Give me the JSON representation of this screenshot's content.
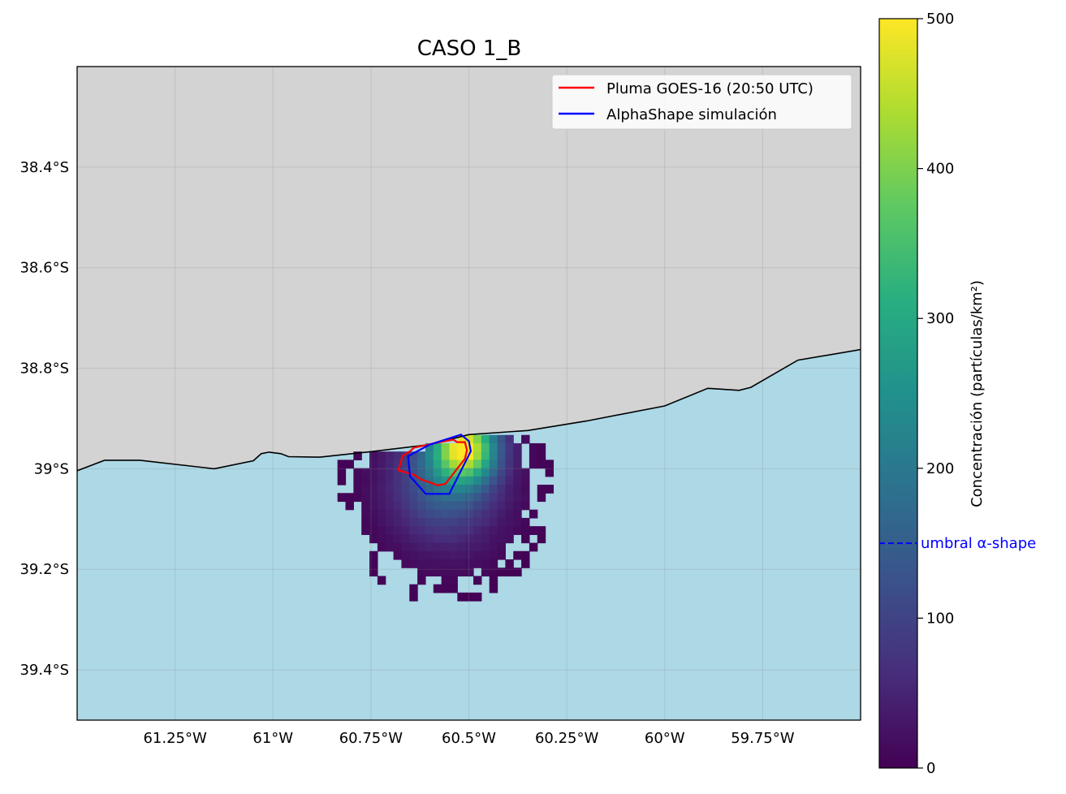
{
  "title": "CASO 1_B",
  "map": {
    "land_color": "#d3d3d3",
    "sea_color": "#add8e6",
    "lon_range": [
      -61.5,
      -59.5
    ],
    "lat_range": [
      -39.5,
      -38.2
    ],
    "x_ticks": [
      {
        "lon": -61.25,
        "label": "61.25°W"
      },
      {
        "lon": -61.0,
        "label": "61°W"
      },
      {
        "lon": -60.75,
        "label": "60.75°W"
      },
      {
        "lon": -60.5,
        "label": "60.5°W"
      },
      {
        "lon": -60.25,
        "label": "60.25°W"
      },
      {
        "lon": -60.0,
        "label": "60°W"
      },
      {
        "lon": -59.75,
        "label": "59.75°W"
      }
    ],
    "y_ticks": [
      {
        "lat": -38.4,
        "label": "38.4°S"
      },
      {
        "lat": -38.6,
        "label": "38.6°S"
      },
      {
        "lat": -38.8,
        "label": "38.8°S"
      },
      {
        "lat": -39.0,
        "label": "39°S"
      },
      {
        "lat": -39.2,
        "label": "39.2°S"
      },
      {
        "lat": -39.4,
        "label": "39.4°S"
      }
    ],
    "coastline": [
      [
        -61.5,
        -39.004
      ],
      [
        -61.43,
        -38.983
      ],
      [
        -61.34,
        -38.983
      ],
      [
        -61.15,
        -39.0
      ],
      [
        -61.05,
        -38.984
      ],
      [
        -61.03,
        -38.97
      ],
      [
        -61.01,
        -38.967
      ],
      [
        -60.98,
        -38.97
      ],
      [
        -60.96,
        -38.976
      ],
      [
        -60.88,
        -38.977
      ],
      [
        -60.75,
        -38.966
      ],
      [
        -60.6,
        -38.952
      ],
      [
        -60.5,
        -38.932
      ],
      [
        -60.35,
        -38.924
      ],
      [
        -60.2,
        -38.905
      ],
      [
        -60.0,
        -38.875
      ],
      [
        -59.89,
        -38.84
      ],
      [
        -59.81,
        -38.844
      ],
      [
        -59.78,
        -38.838
      ],
      [
        -59.66,
        -38.784
      ],
      [
        -59.5,
        -38.763
      ]
    ]
  },
  "concentration_field": {
    "center_lon": -60.56,
    "center_lat": -39.04,
    "cell_deg_lon": 0.0204,
    "cell_deg_lat": 0.0165,
    "peak_lon": -60.51,
    "peak_lat": -38.957,
    "peak_value": 420,
    "vmin": 0,
    "vmax": 500
  },
  "legend": {
    "position": "upper right",
    "entries": [
      {
        "label": "Pluma GOES-16 (20:50 UTC)",
        "color": "#ff0000"
      },
      {
        "label": "AlphaShape simulación",
        "color": "#0000ff"
      }
    ]
  },
  "plume_goes": [
    [
      -60.64,
      -38.958
    ],
    [
      -60.58,
      -38.948
    ],
    [
      -60.54,
      -38.942
    ],
    [
      -60.53,
      -38.947
    ],
    [
      -60.51,
      -38.947
    ],
    [
      -60.505,
      -38.963
    ],
    [
      -60.51,
      -38.98
    ],
    [
      -60.53,
      -39.0
    ],
    [
      -60.55,
      -39.02
    ],
    [
      -60.56,
      -39.03
    ],
    [
      -60.58,
      -39.033
    ],
    [
      -60.6,
      -39.027
    ],
    [
      -60.62,
      -39.022
    ],
    [
      -60.64,
      -39.012
    ],
    [
      -60.68,
      -39.003
    ],
    [
      -60.675,
      -38.99
    ],
    [
      -60.67,
      -38.975
    ],
    [
      -60.65,
      -38.965
    ]
  ],
  "alpha_shape": [
    [
      -60.655,
      -38.975
    ],
    [
      -60.6,
      -38.952
    ],
    [
      -60.52,
      -38.932
    ],
    [
      -60.5,
      -38.945
    ],
    [
      -60.495,
      -38.965
    ],
    [
      -60.55,
      -39.05
    ],
    [
      -60.61,
      -39.05
    ],
    [
      -60.65,
      -39.015
    ]
  ],
  "colorbar": {
    "label": "Concentración (partículas/km²)",
    "min": 0,
    "max": 500,
    "ticks": [
      {
        "value": 0,
        "label": "0"
      },
      {
        "value": 100,
        "label": "100"
      },
      {
        "value": 200,
        "label": "200"
      },
      {
        "value": 300,
        "label": "300"
      },
      {
        "value": 400,
        "label": "400"
      },
      {
        "value": 500,
        "label": "500"
      }
    ],
    "threshold": {
      "value": 150,
      "label": "umbral α-shape",
      "color": "#0000ff"
    }
  }
}
